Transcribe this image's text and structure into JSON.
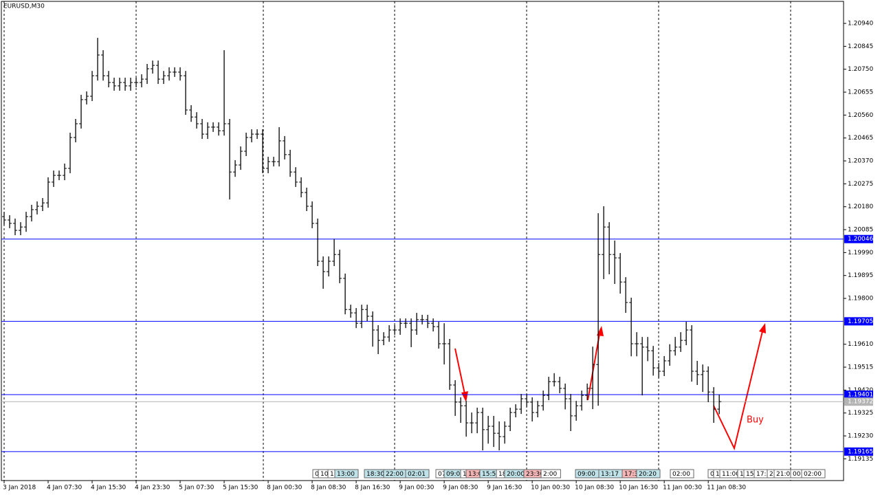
{
  "chart_data": {
    "type": "ohlc",
    "title": "EURUSD,M30",
    "open": [
      1.20139,
      1.20125,
      1.20111,
      1.20082,
      1.20096,
      1.20139,
      1.20168,
      1.20182,
      1.20196,
      1.20282,
      1.2031,
      1.2031,
      1.20339,
      1.20467,
      1.20524,
      1.20624,
      1.20638,
      1.20723,
      1.20809,
      1.20723,
      1.20695,
      1.20681,
      1.20695,
      1.20681,
      1.20695,
      1.20695,
      1.20709,
      1.20752,
      1.20766,
      1.20709,
      1.20723,
      1.20738,
      1.20738,
      1.20723,
      1.20581,
      1.20552,
      1.20524,
      1.20481,
      1.2051,
      1.2051,
      1.20495,
      1.20524,
      1.20324,
      1.20353,
      1.2041,
      1.20467,
      1.20481,
      1.20481,
      1.20339,
      1.20367,
      1.20367,
      1.20453,
      1.20396,
      1.20324,
      1.20282,
      1.20239,
      1.20182,
      1.20111,
      1.19954,
      1.19911,
      1.19954,
      1.19982,
      1.19883,
      1.19754,
      1.1974,
      1.19697,
      1.19754,
      1.19726,
      1.19669,
      1.19626,
      1.1964,
      1.19669,
      1.19669,
      1.19697,
      1.19697,
      1.19669,
      1.19712,
      1.19712,
      1.19697,
      1.19683,
      1.19612,
      1.19612,
      1.19441,
      1.1937,
      1.19355,
      1.19284,
      1.19284,
      1.19327,
      1.19256,
      1.1927,
      1.19241,
      1.19227,
      1.1927,
      1.19327,
      1.19341,
      1.19384,
      1.1937,
      1.19327,
      1.19355,
      1.19398,
      1.19455,
      1.19455,
      1.19427,
      1.19384,
      1.19313,
      1.19355,
      1.19398,
      1.19427,
      1.19526,
      1.19982,
      1.20096,
      1.19982,
      1.19968,
      1.19868,
      1.19783,
      1.19612,
      1.19612,
      1.19598,
      1.19583,
      1.19512,
      1.19498,
      1.19541,
      1.19583,
      1.19598,
      1.19626,
      1.19669,
      1.19498,
      1.19484,
      1.19498,
      1.19412,
      1.19341
    ],
    "high": [
      1.20159,
      1.20145,
      1.20131,
      1.20116,
      1.20159,
      1.20188,
      1.20202,
      1.20216,
      1.20302,
      1.2033,
      1.2033,
      1.20359,
      1.20487,
      1.20544,
      1.20644,
      1.20658,
      1.20743,
      1.2088,
      1.20829,
      1.20743,
      1.20715,
      1.20715,
      1.20715,
      1.20715,
      1.20715,
      1.20729,
      1.20772,
      1.20786,
      1.20786,
      1.20743,
      1.20758,
      1.20758,
      1.20758,
      1.20743,
      1.20601,
      1.20572,
      1.20544,
      1.2053,
      1.2053,
      1.2053,
      1.20829,
      1.20544,
      1.20373,
      1.2043,
      1.20487,
      1.20501,
      1.20501,
      1.20501,
      1.20387,
      1.20387,
      1.2051,
      1.20473,
      1.20416,
      1.20344,
      1.20302,
      1.20259,
      1.20202,
      1.20131,
      1.19974,
      1.19974,
      1.20046,
      1.20002,
      1.19903,
      1.19774,
      1.1976,
      1.19774,
      1.19774,
      1.19746,
      1.19689,
      1.1966,
      1.19689,
      1.19689,
      1.19717,
      1.19717,
      1.19717,
      1.1974,
      1.19732,
      1.19732,
      1.19717,
      1.19703,
      1.19697,
      1.19632,
      1.19461,
      1.1939,
      1.19375,
      1.19327,
      1.19347,
      1.19347,
      1.19313,
      1.19313,
      1.1929,
      1.1929,
      1.19347,
      1.19361,
      1.19404,
      1.19404,
      1.1939,
      1.19375,
      1.19418,
      1.19475,
      1.1949,
      1.19475,
      1.19447,
      1.19404,
      1.19375,
      1.19418,
      1.19447,
      1.196,
      1.20153,
      1.20182,
      1.20116,
      1.2004,
      1.19988,
      1.19888,
      1.19803,
      1.1966,
      1.1964,
      1.1964,
      1.19603,
      1.19532,
      1.19561,
      1.1961,
      1.1964,
      1.1966,
      1.19703,
      1.19689,
      1.19541,
      1.19526,
      1.19518,
      1.19432,
      1.19401
    ],
    "low": [
      1.20105,
      1.20091,
      1.20062,
      1.20062,
      1.20076,
      1.20119,
      1.20148,
      1.20162,
      1.20176,
      1.20262,
      1.2029,
      1.2029,
      1.20319,
      1.20447,
      1.20504,
      1.20604,
      1.20618,
      1.20703,
      1.20703,
      1.20675,
      1.20661,
      1.20661,
      1.20661,
      1.20661,
      1.20675,
      1.20675,
      1.20689,
      1.20732,
      1.20689,
      1.20689,
      1.20703,
      1.20718,
      1.20703,
      1.20561,
      1.20532,
      1.20504,
      1.20461,
      1.20461,
      1.2049,
      1.20475,
      1.20475,
      1.2021,
      1.20304,
      1.20333,
      1.2039,
      1.20447,
      1.20461,
      1.20319,
      1.20319,
      1.20347,
      1.20347,
      1.20376,
      1.20304,
      1.20262,
      1.20219,
      1.20162,
      1.20091,
      1.19934,
      1.1984,
      1.19891,
      1.19934,
      1.19863,
      1.19734,
      1.1972,
      1.19677,
      1.19677,
      1.19706,
      1.196,
      1.19569,
      1.19606,
      1.1962,
      1.19649,
      1.19649,
      1.19677,
      1.19598,
      1.19649,
      1.19692,
      1.19677,
      1.19663,
      1.19592,
      1.19526,
      1.19421,
      1.19313,
      1.19284,
      1.19227,
      1.19241,
      1.19241,
      1.1917,
      1.19198,
      1.19184,
      1.1917,
      1.19198,
      1.1925,
      1.19307,
      1.19321,
      1.1935,
      1.1929,
      1.19307,
      1.19335,
      1.19378,
      1.19435,
      1.19407,
      1.1934,
      1.1925,
      1.19293,
      1.19335,
      1.19378,
      1.19341,
      1.19355,
      1.1988,
      1.199,
      1.1986,
      1.1982,
      1.1974,
      1.1956,
      1.1956,
      1.19398,
      1.1954,
      1.1948,
      1.1947,
      1.19478,
      1.19521,
      1.19563,
      1.19578,
      1.19606,
      1.19455,
      1.19441,
      1.19412,
      1.1937,
      1.19284,
      1.1932
    ],
    "close": [
      1.20125,
      1.20111,
      1.20082,
      1.20096,
      1.20139,
      1.20168,
      1.20182,
      1.20196,
      1.20282,
      1.2031,
      1.2031,
      1.20339,
      1.20467,
      1.20524,
      1.20624,
      1.20638,
      1.20723,
      1.20809,
      1.20723,
      1.20695,
      1.20681,
      1.20695,
      1.20681,
      1.20695,
      1.20695,
      1.20709,
      1.20752,
      1.20766,
      1.20709,
      1.20723,
      1.20738,
      1.20738,
      1.20723,
      1.20581,
      1.20552,
      1.20524,
      1.20481,
      1.2051,
      1.2051,
      1.20495,
      1.20524,
      1.20324,
      1.20353,
      1.2041,
      1.20467,
      1.20481,
      1.20481,
      1.20339,
      1.20367,
      1.20367,
      1.20453,
      1.20396,
      1.20324,
      1.20282,
      1.20239,
      1.20182,
      1.20111,
      1.19954,
      1.19911,
      1.19954,
      1.19982,
      1.19883,
      1.19754,
      1.1974,
      1.19697,
      1.19754,
      1.19726,
      1.19669,
      1.19626,
      1.1964,
      1.19669,
      1.19669,
      1.19697,
      1.19697,
      1.19669,
      1.19712,
      1.19712,
      1.19697,
      1.19683,
      1.19612,
      1.19612,
      1.19441,
      1.1937,
      1.19355,
      1.19284,
      1.19284,
      1.19327,
      1.19256,
      1.1927,
      1.19241,
      1.19227,
      1.1927,
      1.19327,
      1.19341,
      1.19384,
      1.1937,
      1.19327,
      1.19355,
      1.19398,
      1.19455,
      1.19455,
      1.19427,
      1.19384,
      1.19313,
      1.19355,
      1.19398,
      1.19427,
      1.19526,
      1.19982,
      1.20096,
      1.19982,
      1.19968,
      1.19868,
      1.19783,
      1.19612,
      1.19612,
      1.19598,
      1.19583,
      1.19512,
      1.19498,
      1.19541,
      1.19583,
      1.19598,
      1.19626,
      1.19669,
      1.19498,
      1.19484,
      1.19498,
      1.19412,
      1.19341,
      1.19372
    ],
    "color": "#000000",
    "xlim": [
      -0.5,
      152.6
    ],
    "xticks": [
      {
        "value": 0,
        "label": "3 Jan 2018"
      },
      {
        "value": 8,
        "label": "4 Jan 07:30"
      },
      {
        "value": 16,
        "label": "4 Jan 15:30"
      },
      {
        "value": 24,
        "label": "4 Jan 23:30"
      },
      {
        "value": 32,
        "label": "5 Jan 07:30"
      },
      {
        "value": 40,
        "label": "5 Jan 15:30"
      },
      {
        "value": 48,
        "label": "8 Jan 00:30"
      },
      {
        "value": 56,
        "label": "8 Jan 08:30"
      },
      {
        "value": 64,
        "label": "8 Jan 16:30"
      },
      {
        "value": 72,
        "label": "9 Jan 00:30"
      },
      {
        "value": 80,
        "label": "9 Jan 08:30"
      },
      {
        "value": 88,
        "label": "9 Jan 16:30"
      },
      {
        "value": 96,
        "label": "10 Jan 00:30"
      },
      {
        "value": 104,
        "label": "10 Jan 08:30"
      },
      {
        "value": 112,
        "label": "10 Jan 16:30"
      },
      {
        "value": 120,
        "label": "11 Jan 00:30"
      },
      {
        "value": 128,
        "label": "11 Jan 08:30"
      }
    ],
    "ylim": [
      1.19042,
      1.21037
    ],
    "yticks": [
      {
        "value": 1.2094,
        "label": "1.20940"
      },
      1.20845,
      {
        "value": 1.2075,
        "label": "1.20750"
      },
      1.20655,
      {
        "value": 1.2056,
        "label": "1.20560"
      },
      1.20465,
      {
        "value": 1.2037,
        "label": "1.20370"
      },
      1.20275,
      {
        "value": 1.2018,
        "label": "1.20180"
      },
      1.20085,
      {
        "value": 1.1999,
        "label": "1.19990"
      },
      1.19895,
      {
        "value": 1.198,
        "label": "1.19800"
      },
      {
        "value": 1.1961,
        "label": "1.19610"
      },
      1.19515,
      {
        "value": 1.1942,
        "label": "1.19420"
      },
      1.19325,
      {
        "value": 1.1923,
        "label": "1.19230"
      },
      1.19135
    ],
    "levels": {
      "color": "#0000ff",
      "values": [
        1.20046,
        1.19705,
        1.19401,
        1.19165
      ]
    },
    "bid": {
      "color": "#b4b4b4",
      "value": 1.19372
    },
    "annotation": "Buy",
    "events": [
      {
        "text": "0",
        "color": "#ffffff"
      },
      {
        "text": "10",
        "color": "#ffffff"
      },
      {
        "text": "1",
        "color": "#ffffff"
      },
      {
        "text": "13:00",
        "color": "#bfe3e8"
      },
      {
        "text": "18:30",
        "color": "#bfe3e8"
      },
      {
        "text": "22:00",
        "color": "#bfe3e8"
      },
      {
        "text": "02:01",
        "color": "#bfe3e8"
      },
      {
        "text": "07",
        "color": "#ffffff"
      },
      {
        "text": "09:00",
        "color": "#bfe3e8"
      },
      {
        "text": "1",
        "color": "#ffffff"
      },
      {
        "text": "13:0",
        "color": "#f4b6b6"
      },
      {
        "text": "15:55",
        "color": "#bfe3e8"
      },
      {
        "text": "18",
        "color": "#ffffff"
      },
      {
        "text": "20:00",
        "color": "#bfe3e8"
      },
      {
        "text": "23:30",
        "color": "#f4b6b6"
      },
      {
        "text": "2:00",
        "color": "#ffffff"
      },
      {
        "text": "09:00",
        "color": "#bfe3e8"
      },
      {
        "text": "13:17",
        "color": "#bfe3e8"
      },
      {
        "text": "17:3",
        "color": "#f4b6b6"
      },
      {
        "text": "20:20",
        "color": "#bfe3e8"
      },
      {
        "text": "02:00",
        "color": "#ffffff"
      },
      {
        "text": "0",
        "color": "#ffffff"
      },
      {
        "text": "1",
        "color": "#ffffff"
      },
      {
        "text": "11:00",
        "color": "#ffffff"
      },
      {
        "text": "1",
        "color": "#ffffff"
      },
      {
        "text": "15:",
        "color": "#ffffff"
      },
      {
        "text": "17:3",
        "color": "#ffffff"
      },
      {
        "text": "2",
        "color": "#ffffff"
      },
      {
        "text": "21:00",
        "color": "#ffffff"
      },
      {
        "text": "00",
        "color": "#ffffff"
      },
      {
        "text": "02:00",
        "color": "#ffffff"
      }
    ]
  }
}
